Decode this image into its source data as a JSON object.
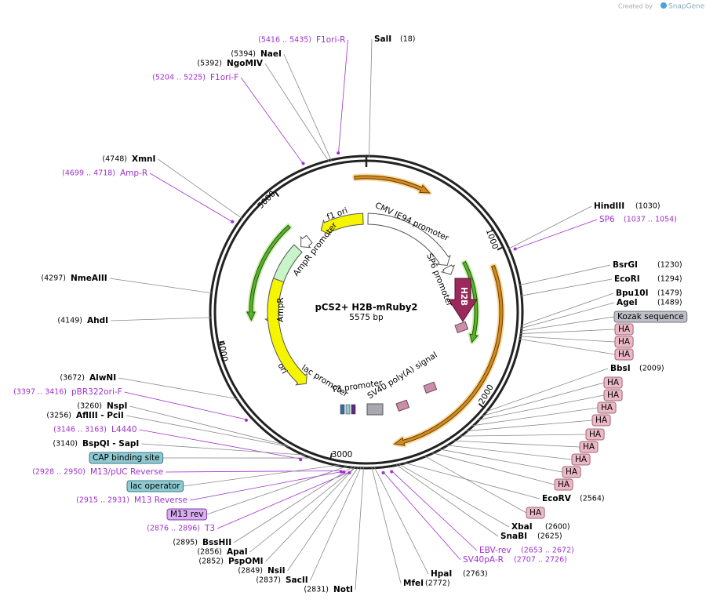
{
  "header": {
    "created_by": "Created by",
    "brand": "SnapGene"
  },
  "map": {
    "title": "pCS2+ H2B-mRuby2",
    "length": "5575 bp",
    "ticks": [
      1000,
      2000,
      3000,
      4000,
      5000
    ]
  },
  "features": [
    "f1 ori",
    "CMV IE94 promoter",
    "SP6 promoter",
    "H2B",
    "AmpR promoter",
    "AmpR",
    "ori",
    "lac promoter",
    "T3 promoter",
    "SV40 poly(A) signal"
  ],
  "sites": [
    {
      "name": "SalI",
      "pos": "(18)",
      "color": "#000000"
    },
    {
      "name": "NaeI",
      "pos": "(5394)",
      "color": "#000000"
    },
    {
      "name": "NgoMIV",
      "pos": "(5392)",
      "color": "#000000"
    },
    {
      "name": "F1ori-R",
      "pos": "(5416 .. 5435)",
      "color": "#a030d0"
    },
    {
      "name": "F1ori-F",
      "pos": "(5204 .. 5225)",
      "color": "#a030d0"
    },
    {
      "name": "XmnI",
      "pos": "(4748)",
      "color": "#000000"
    },
    {
      "name": "Amp-R",
      "pos": "(4699 .. 4718)",
      "color": "#a030d0"
    },
    {
      "name": "NmeAIII",
      "pos": "(4297)",
      "color": "#000000"
    },
    {
      "name": "AhdI",
      "pos": "(4149)",
      "color": "#000000"
    },
    {
      "name": "AlwNI",
      "pos": "(3672)",
      "color": "#000000"
    },
    {
      "name": "pBR322ori-F",
      "pos": "(3397 .. 3416)",
      "color": "#a030d0"
    },
    {
      "name": "NspI",
      "pos": "(3260)",
      "color": "#000000"
    },
    {
      "name": "AflIII - PciI",
      "pos": "(3256)",
      "color": "#000000"
    },
    {
      "name": "L4440",
      "pos": "(3146 .. 3163)",
      "color": "#a030d0"
    },
    {
      "name": "BspQI - SapI",
      "pos": "(3140)",
      "color": "#000000"
    },
    {
      "name": "M13/pUC Reverse",
      "pos": "(2928 .. 2950)",
      "color": "#a030d0"
    },
    {
      "name": "M13 Reverse",
      "pos": "(2915 .. 2931)",
      "color": "#a030d0"
    },
    {
      "name": "T3",
      "pos": "(2876 .. 2896)",
      "color": "#a030d0"
    },
    {
      "name": "BssHII",
      "pos": "(2895)",
      "color": "#000000"
    },
    {
      "name": "ApaI",
      "pos": "(2856)",
      "color": "#000000"
    },
    {
      "name": "PspOMI",
      "pos": "(2852)",
      "color": "#000000"
    },
    {
      "name": "NsiI",
      "pos": "(2849)",
      "color": "#000000"
    },
    {
      "name": "SacII",
      "pos": "(2837)",
      "color": "#000000"
    },
    {
      "name": "NotI",
      "pos": "(2831)",
      "color": "#000000"
    },
    {
      "name": "MfeI",
      "pos": "(2772)",
      "color": "#000000"
    },
    {
      "name": "HpaI",
      "pos": "(2763)",
      "color": "#000000"
    },
    {
      "name": "SV40pA-R",
      "pos": "(2707 .. 2726)",
      "color": "#a030d0"
    },
    {
      "name": "EBV-rev",
      "pos": "(2653 .. 2672)",
      "color": "#a030d0"
    },
    {
      "name": "SnaBI",
      "pos": "(2625)",
      "color": "#000000"
    },
    {
      "name": "XbaI",
      "pos": "(2600)",
      "color": "#000000"
    },
    {
      "name": "EcoRV",
      "pos": "(2564)",
      "color": "#000000"
    },
    {
      "name": "BbsI",
      "pos": "(2009)",
      "color": "#000000"
    },
    {
      "name": "AgeI",
      "pos": "(1489)",
      "color": "#000000"
    },
    {
      "name": "Bpu10I",
      "pos": "(1479)",
      "color": "#000000"
    },
    {
      "name": "EcoRI",
      "pos": "(1294)",
      "color": "#000000"
    },
    {
      "name": "BsrGI",
      "pos": "(1230)",
      "color": "#000000"
    },
    {
      "name": "SP6",
      "pos": "(1037 .. 1054)",
      "color": "#a030d0"
    },
    {
      "name": "HindIII",
      "pos": "(1030)",
      "color": "#000000"
    }
  ],
  "boxes": [
    {
      "name": "Kozak sequence",
      "fill": "#bfbfc8",
      "stroke": "#707078"
    },
    {
      "name": "HA",
      "fill": "#ebb8c6",
      "stroke": "#a06878"
    },
    {
      "name": "HA",
      "fill": "#ebb8c6",
      "stroke": "#a06878"
    },
    {
      "name": "HA",
      "fill": "#ebb8c6",
      "stroke": "#a06878"
    },
    {
      "name": "HA",
      "fill": "#ebb8c6",
      "stroke": "#a06878"
    },
    {
      "name": "HA",
      "fill": "#ebb8c6",
      "stroke": "#a06878"
    },
    {
      "name": "HA",
      "fill": "#ebb8c6",
      "stroke": "#a06878"
    },
    {
      "name": "HA",
      "fill": "#ebb8c6",
      "stroke": "#a06878"
    },
    {
      "name": "HA",
      "fill": "#ebb8c6",
      "stroke": "#a06878"
    },
    {
      "name": "HA",
      "fill": "#ebb8c6",
      "stroke": "#a06878"
    },
    {
      "name": "HA",
      "fill": "#ebb8c6",
      "stroke": "#a06878"
    },
    {
      "name": "HA",
      "fill": "#ebb8c6",
      "stroke": "#a06878"
    },
    {
      "name": "HA",
      "fill": "#ebb8c6",
      "stroke": "#a06878"
    },
    {
      "name": "HA",
      "fill": "#ebb8c6",
      "stroke": "#a06878"
    },
    {
      "name": "CAP binding site",
      "fill": "#8fc9d2",
      "stroke": "#3a7a84"
    },
    {
      "name": "lac operator",
      "fill": "#8fc9d2",
      "stroke": "#3a7a84"
    },
    {
      "name": "M13 rev",
      "fill": "#d9aef0",
      "stroke": "#8040a8"
    }
  ]
}
